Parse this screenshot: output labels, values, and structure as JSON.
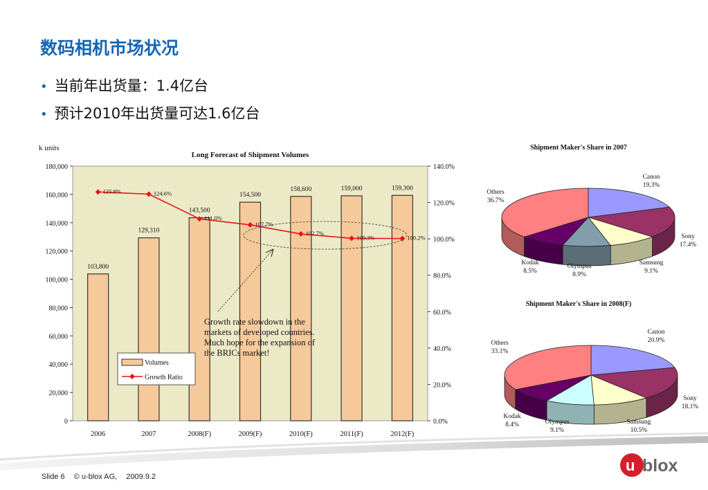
{
  "slide": {
    "title": "数码相机市场状况",
    "bullets": [
      "当前年出货量：1.4亿台",
      "预计2010年出货量可达1.6亿台"
    ],
    "footer": {
      "slide_no": "Slide 6",
      "company": "© u-blox AG,",
      "date": "2009.9.2"
    },
    "logo_text": "blox",
    "logo_letter": "u"
  },
  "colors": {
    "title": "#1565b5",
    "bar": "#f6c99a",
    "bar_border": "#333333",
    "line": "#e8131a",
    "grid_bg": "#ece9c6"
  },
  "chart_data": [
    {
      "type": "bar",
      "title": "Long Forecast of Shipment Volumes",
      "ylabel": "k units",
      "categories": [
        "2006",
        "2007",
        "2008(F)",
        "2009(F)",
        "2010(F)",
        "2011(F)",
        "2012(F)"
      ],
      "ylim": [
        0,
        180000
      ],
      "yticks": [
        "0",
        "20,000",
        "40,000",
        "60,000",
        "80,000",
        "100,000",
        "120,000",
        "140,000",
        "160,000",
        "180,000"
      ],
      "y2lim": [
        0,
        140
      ],
      "y2ticks": [
        "0.0%",
        "20.0%",
        "40.0%",
        "60.0%",
        "80.0%",
        "100.0%",
        "120.0%",
        "140.0%"
      ],
      "series": [
        {
          "name": "Volumes",
          "type": "bar",
          "values": [
            103800,
            129310,
            143500,
            154500,
            158600,
            159000,
            159300
          ],
          "labels": [
            "103,800",
            "129,310",
            "143,500",
            "154,500",
            "158,600",
            "159,000",
            "159,300"
          ]
        },
        {
          "name": "Growth Ratio",
          "type": "line",
          "axis": "y2",
          "values": [
            125.8,
            124.6,
            111.0,
            107.7,
            102.7,
            100.3,
            100.2
          ],
          "labels": [
            "125.8%",
            "124.6%",
            "111.0%",
            "107.7%",
            "102.7%",
            "100.3%",
            "100.2%"
          ]
        }
      ],
      "annotation": "Growth rate slowdown in the markets of developed countries. Much hope for the expansion of the BRICs market!",
      "annotation_lines": [
        "Growth rate slowdown in the",
        "markets of developed countries.",
        "Much hope for the expansion of",
        "the BRICs market!"
      ],
      "legend": "bottom-left"
    },
    {
      "type": "pie",
      "title": "Shipment Maker's Share in 2007",
      "labels": [
        "Canon",
        "Sony",
        "Samsung",
        "Olympus",
        "Kodak",
        "Others"
      ],
      "values": [
        19.3,
        17.4,
        9.1,
        8.9,
        8.5,
        36.7
      ],
      "value_labels": [
        "19.3%",
        "17.4%",
        "9.1%",
        "8.9%",
        "8.5%",
        "36.7%"
      ],
      "colors": [
        "#9a99ff",
        "#993366",
        "#ffffcc",
        "#829dab",
        "#660066",
        "#ff8080"
      ]
    },
    {
      "type": "pie",
      "title": "Shipment Maker's Share in 2008(F)",
      "labels": [
        "Canon",
        "Sony",
        "Samsung",
        "Olympus",
        "Kodak",
        "Others"
      ],
      "values": [
        20.9,
        18.1,
        10.5,
        9.1,
        8.4,
        33.1
      ],
      "value_labels": [
        "20.9%",
        "18.1%",
        "10.5%",
        "9.1%",
        "8.4%",
        "33.1%"
      ],
      "colors": [
        "#9a99ff",
        "#993366",
        "#ffffcc",
        "#ccffff",
        "#660066",
        "#ff8080"
      ]
    }
  ]
}
